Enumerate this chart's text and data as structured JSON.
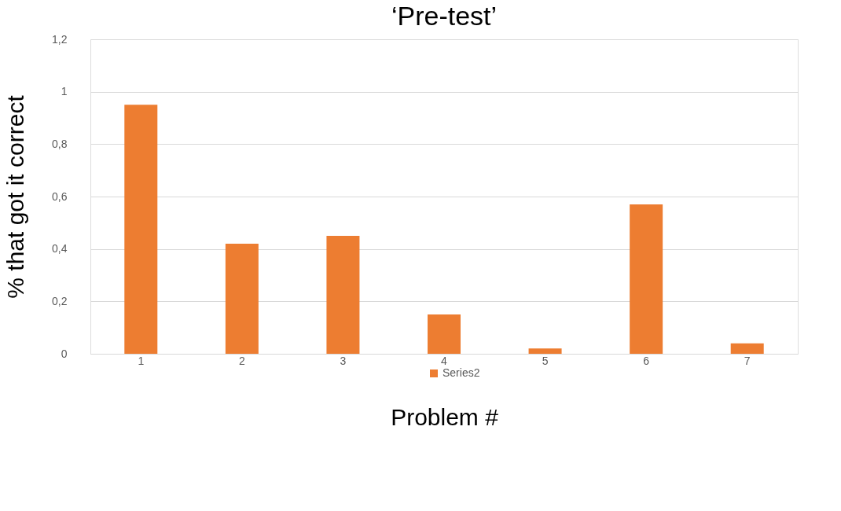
{
  "chart_data": {
    "type": "bar",
    "title": "‘Pre-test’",
    "xlabel": "Problem #",
    "ylabel": "% that got it correct",
    "categories": [
      "1",
      "2",
      "3",
      "4",
      "5",
      "6",
      "7"
    ],
    "series": [
      {
        "name": "Series2",
        "color": "#ed7d31",
        "values": [
          0.95,
          0.42,
          0.45,
          0.15,
          0.02,
          0.57,
          0.04
        ]
      }
    ],
    "ylim": [
      0,
      1.2
    ],
    "yticks": [
      0,
      {
        "value": 0.2,
        "label": "0,2"
      },
      {
        "value": 0.4,
        "label": "0,4"
      },
      {
        "value": 0.6,
        "label": "0,6"
      },
      {
        "value": 0.8,
        "label": "0,8"
      },
      1,
      {
        "value": 1.2,
        "label": "1,2"
      }
    ],
    "grid": "y",
    "legend": "bottom"
  }
}
